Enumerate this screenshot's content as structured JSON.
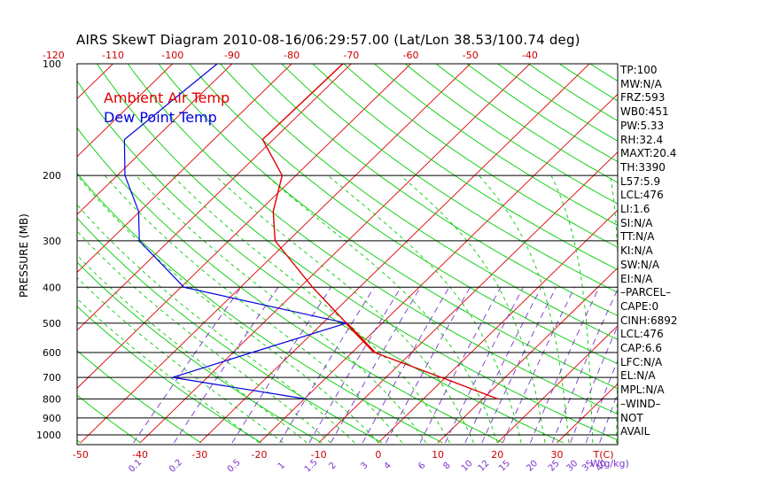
{
  "chart_data": {
    "type": "line",
    "title": "AIRS SkewT Diagram 2010-08-16/06:29:57.00 (Lat/Lon 38.53/100.74 deg)",
    "ylabel": "PRESSURE (MB)",
    "xlabel": "T(C)",
    "pressure_ticks": [
      100,
      200,
      300,
      400,
      500,
      600,
      700,
      800,
      900,
      1000
    ],
    "pressure_range": [
      100,
      1050
    ],
    "top_temp_ticks": [
      -120,
      -110,
      -100,
      -90,
      -80,
      -70,
      -60,
      -50,
      -40
    ],
    "bottom_temp_ticks": [
      -50,
      -40,
      -30,
      -20,
      -10,
      0,
      10,
      20,
      30
    ],
    "mixing_ratio_labels": [
      "0.1",
      "0.2",
      "0.5",
      "1",
      "1.5",
      "2",
      "3",
      "4",
      "6",
      "8",
      "10",
      "12",
      "15",
      "20",
      "25",
      "30",
      "35",
      "40"
    ],
    "mixing_ratio_unit": "W(g/kg)",
    "series": [
      {
        "name": "Ambient Air Temp",
        "color": "#e00000",
        "points": [
          [
            100,
            -71.4
          ],
          [
            160,
            -71.8
          ],
          [
            200,
            -62.3
          ],
          [
            250,
            -57.6
          ],
          [
            300,
            -52.2
          ],
          [
            400,
            -37.9
          ],
          [
            500,
            -26.0
          ],
          [
            600,
            -16.2
          ],
          [
            700,
            -0.7
          ],
          [
            800,
            12.5
          ]
        ]
      },
      {
        "name": "Dew Point Temp",
        "color": "#0000e0",
        "points": [
          [
            100,
            -92.5
          ],
          [
            160,
            -95.0
          ],
          [
            200,
            -88.7
          ],
          [
            250,
            -80.2
          ],
          [
            300,
            -75.0
          ],
          [
            400,
            -59.5
          ],
          [
            500,
            -26.0
          ],
          [
            600,
            -36.8
          ],
          [
            700,
            -45.8
          ],
          [
            800,
            -19.8
          ]
        ]
      }
    ],
    "side_panel": [
      "TP:100",
      "MW:N/A",
      "FRZ:593",
      "WB0:451",
      "PW:5.33",
      "RH:32.4",
      "MAXT:20.4",
      "TH:3390",
      "L57:5.9",
      "LCL:476",
      "LI:1.6",
      "SI:N/A",
      "TT:N/A",
      "KI:N/A",
      "SW:N/A",
      "EI:N/A",
      "–PARCEL–",
      "CAPE:0",
      "CINH:6892",
      "LCL:476",
      "CAP:6.6",
      "LFC:N/A",
      "EL:N/A",
      "MPL:N/A",
      "–WIND–",
      " NOT",
      " AVAIL"
    ]
  },
  "colors": {
    "isotherm": "#e00000",
    "dry_adiabat": "#00cc00",
    "moist_adiabat": "#00cc00",
    "mixing_ratio": "#7a33cc",
    "axis_labels_bottom": "#cc0000",
    "mixing_ratio_labels": "#7a33cc"
  }
}
